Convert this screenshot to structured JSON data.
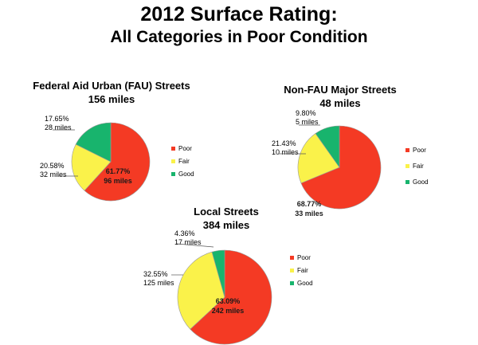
{
  "title": "2012 Surface Rating:",
  "subtitle": "All Categories in Poor Condition",
  "colors": {
    "Poor": "#f43a24",
    "Fair": "#faf24a",
    "Good": "#18b46d",
    "edge": "#9a9a9a"
  },
  "chart_data": [
    {
      "type": "pie",
      "title_lines": [
        "Federal Aid Urban (FAU) Streets",
        "156 miles"
      ],
      "legend": [
        "Poor",
        "Fair",
        "Good"
      ],
      "slices": [
        {
          "name": "Poor",
          "percent": 61.77,
          "pct_label": "61.77%",
          "miles_label": "96 miles"
        },
        {
          "name": "Fair",
          "percent": 20.58,
          "pct_label": "20.58%",
          "miles_label": "32 miles"
        },
        {
          "name": "Good",
          "percent": 17.65,
          "pct_label": "17.65%",
          "miles_label": "28 miles"
        }
      ]
    },
    {
      "type": "pie",
      "title_lines": [
        "Non-FAU Major Streets",
        "48 miles"
      ],
      "legend": [
        "Poor",
        "Fair",
        "Good"
      ],
      "slices": [
        {
          "name": "Poor",
          "percent": 68.77,
          "pct_label": "68.77%",
          "miles_label": "33 miles"
        },
        {
          "name": "Fair",
          "percent": 21.43,
          "pct_label": "21.43%",
          "miles_label": "10 miles"
        },
        {
          "name": "Good",
          "percent": 9.8,
          "pct_label": "9.80%",
          "miles_label": "5 miles"
        }
      ]
    },
    {
      "type": "pie",
      "title_lines": [
        "Local Streets",
        "384 miles"
      ],
      "legend": [
        "Poor",
        "Fair",
        "Good"
      ],
      "slices": [
        {
          "name": "Poor",
          "percent": 63.09,
          "pct_label": "63.09%",
          "miles_label": "242 miles"
        },
        {
          "name": "Fair",
          "percent": 32.55,
          "pct_label": "32.55%",
          "miles_label": "125 miles"
        },
        {
          "name": "Good",
          "percent": 4.36,
          "pct_label": "4.36%",
          "miles_label": "17 miles"
        }
      ]
    }
  ]
}
